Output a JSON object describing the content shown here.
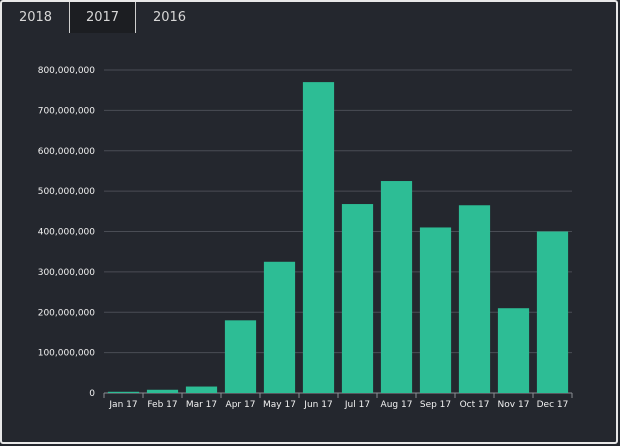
{
  "tabs": [
    {
      "label": "2018",
      "active": false
    },
    {
      "label": "2017",
      "active": true
    },
    {
      "label": "2016",
      "active": false
    }
  ],
  "colors": {
    "background": "#24272e",
    "bar": "#2dbd95",
    "grid": "#4a4d55",
    "text": "#f2f2f2"
  },
  "chart_data": {
    "type": "bar",
    "categories": [
      "Jan 17",
      "Feb 17",
      "Mar 17",
      "Apr 17",
      "May 17",
      "Jun 17",
      "Jul 17",
      "Aug 17",
      "Sep 17",
      "Oct 17",
      "Nov 17",
      "Dec 17"
    ],
    "values": [
      3000000,
      8000000,
      16000000,
      180000000,
      325000000,
      770000000,
      468000000,
      525000000,
      410000000,
      465000000,
      210000000,
      400000000
    ],
    "ylim": [
      0,
      800000000
    ],
    "yticks": [
      0,
      100000000,
      200000000,
      300000000,
      400000000,
      500000000,
      600000000,
      700000000,
      800000000
    ],
    "ytick_labels": [
      "0",
      "100,000,000",
      "200,000,000",
      "300,000,000",
      "400,000,000",
      "500,000,000",
      "600,000,000",
      "700,000,000",
      "800,000,000"
    ],
    "grid": true,
    "title": "",
    "xlabel": "",
    "ylabel": ""
  }
}
